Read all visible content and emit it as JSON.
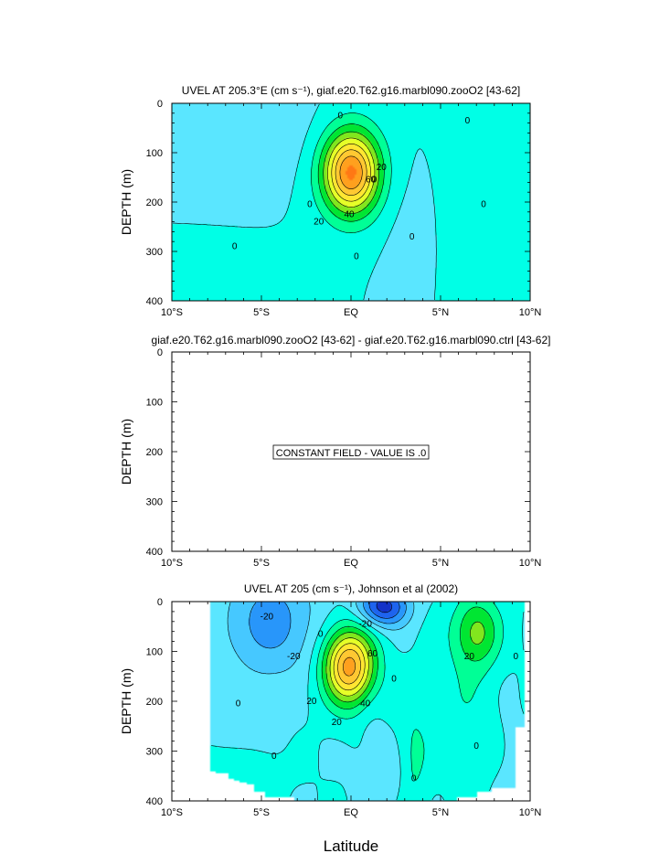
{
  "chart_data": [
    {
      "type": "contour",
      "title": "UVEL AT 205.3°E (cm s⁻¹), giaf.e20.T62.g16.marbl090.zooO2 [43-62]",
      "ylabel": "DEPTH (m)",
      "xlabel": "",
      "x_ticks": [
        "10°S",
        "5°S",
        "EQ",
        "5°N",
        "10°N"
      ],
      "y_ticks": [
        "0",
        "100",
        "200",
        "300",
        "400"
      ],
      "xlim": [
        -10,
        10
      ],
      "ylim": [
        0,
        400
      ],
      "y_reversed": true,
      "contour_interval": 10,
      "contour_labels": [
        "0",
        "0",
        "0",
        "0",
        "0",
        "0",
        "0",
        "0",
        "20",
        "20",
        "40",
        "60"
      ],
      "features": [
        {
          "kind": "jet_core",
          "lat": 0,
          "depth": 140,
          "max": 75,
          "half_width_deg": 1.5,
          "half_depth_m": 80
        }
      ]
    },
    {
      "type": "contour",
      "title": "giaf.e20.T62.g16.marbl090.zooO2 [43-62] - giaf.e20.T62.g16.marbl090.ctrl [43-62]",
      "ylabel": "DEPTH (m)",
      "x_ticks": [
        "10°S",
        "5°S",
        "EQ",
        "5°N",
        "10°N"
      ],
      "y_ticks": [
        "0",
        "100",
        "200",
        "300",
        "400"
      ],
      "xlim": [
        -10,
        10
      ],
      "ylim": [
        0,
        400
      ],
      "y_reversed": true,
      "annotation": "CONSTANT FIELD - VALUE IS .0"
    },
    {
      "type": "contour",
      "title": "UVEL AT 205 (cm s⁻¹), Johnson et al (2002)",
      "ylabel": "DEPTH (m)",
      "xlabel": "Latitude",
      "x_ticks": [
        "10°S",
        "5°S",
        "EQ",
        "5°N",
        "10°N"
      ],
      "y_ticks": [
        "0",
        "100",
        "200",
        "300",
        "400"
      ],
      "xlim": [
        -10,
        10
      ],
      "ylim": [
        0,
        400
      ],
      "y_reversed": true,
      "contour_interval": 10,
      "contour_labels": [
        "-20",
        "-20",
        "-20",
        "20",
        "20",
        "20",
        "40",
        "60",
        "0",
        "0",
        "0",
        "0",
        "0",
        "0",
        "0"
      ],
      "features": [
        {
          "kind": "jet_core",
          "lat": 0,
          "depth": 130,
          "max": 75
        },
        {
          "kind": "westward_surface",
          "lat": 1.8,
          "depth": 10,
          "min": -40
        },
        {
          "kind": "eastward_surface",
          "lat": 7,
          "depth": 60,
          "max": 30
        }
      ]
    }
  ],
  "colors": {
    "palette": [
      "#1432c8",
      "#1e64ee",
      "#2896fa",
      "#46c8ff",
      "#5ae6ff",
      "#00ffe6",
      "#00ff96",
      "#00e632",
      "#82e61e",
      "#e6ff28",
      "#ffe632",
      "#ffc832",
      "#ffa01e",
      "#ff7814",
      "#ff4614",
      "#e60000",
      "#b40000"
    ]
  }
}
